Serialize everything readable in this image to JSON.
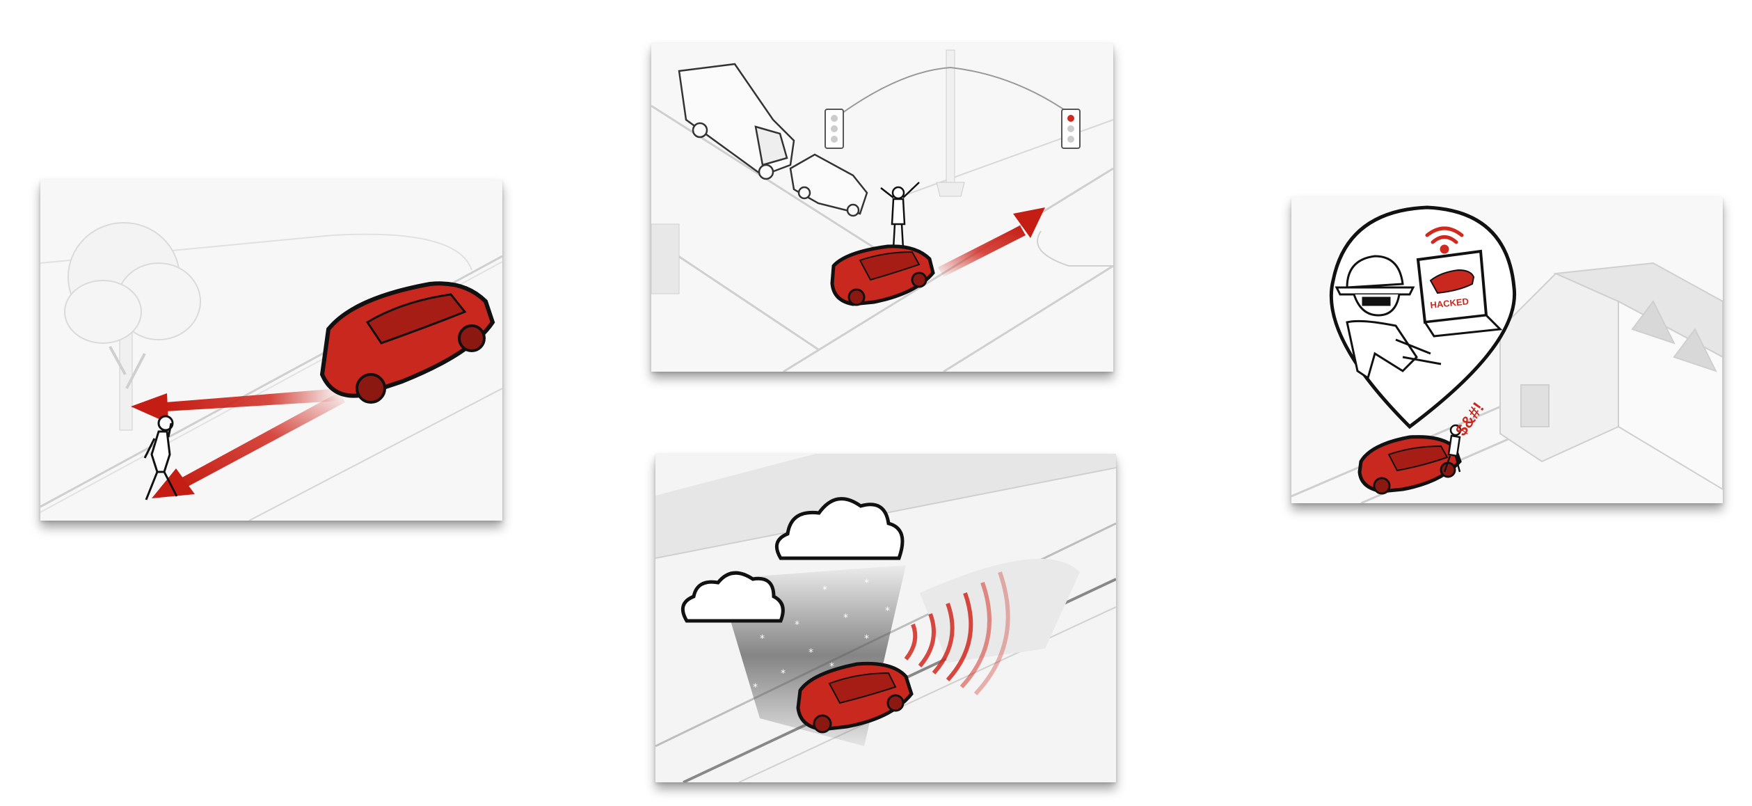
{
  "scenes": [
    {
      "name": "pedestrian-scene"
    },
    {
      "name": "police-intersection-scene"
    },
    {
      "name": "bad-weather-scene"
    },
    {
      "name": "hacking-scene"
    }
  ],
  "hacking": {
    "laptop_label": "HACKED",
    "swear_text": "$&#!"
  },
  "colors": {
    "car_red": "#c8281e",
    "arrow_red": "#d02a20",
    "outline": "#111111",
    "road_line": "#bdbdbd"
  }
}
